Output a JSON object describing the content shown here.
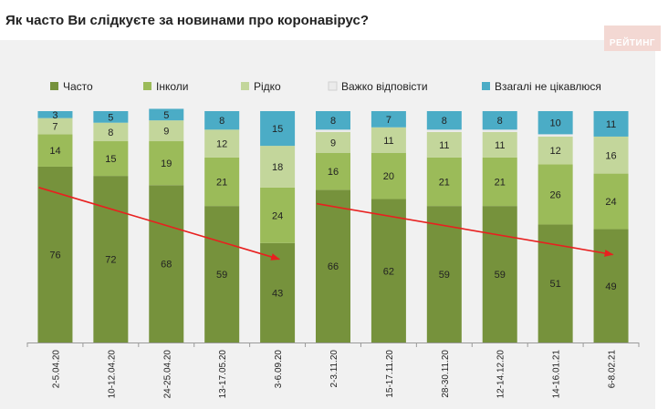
{
  "chart_data": {
    "type": "bar",
    "stacked": true,
    "title": "Як часто Ви слідкуєте за новинами про коронавірус?",
    "categories": [
      "2-5.04.20",
      "10-12.04.20",
      "24-25.04.20",
      "13-17.05.20",
      "3-6.09.20",
      "2-3.11.20",
      "15-17.11.20",
      "28-30.11.20",
      "12-14.12.20",
      "14-16.01.21",
      "6-8.02.21"
    ],
    "series": [
      {
        "name": "Часто",
        "color": "#76923c",
        "values": [
          76,
          72,
          68,
          59,
          43,
          66,
          62,
          59,
          59,
          51,
          49
        ]
      },
      {
        "name": "Інколи",
        "color": "#9bbb59",
        "values": [
          14,
          15,
          19,
          21,
          24,
          16,
          20,
          21,
          21,
          26,
          24
        ]
      },
      {
        "name": "Рідко",
        "color": "#c3d69b",
        "values": [
          7,
          8,
          9,
          12,
          18,
          9,
          11,
          11,
          11,
          12,
          16
        ]
      },
      {
        "name": "Важко відповісти",
        "color": "#ebebeb",
        "values": [
          0,
          0,
          0,
          0,
          0,
          1,
          0,
          1,
          1,
          1,
          0
        ]
      },
      {
        "name": "Взагалі не цікавлюся",
        "color": "#4bacc6",
        "values": [
          3,
          5,
          5,
          8,
          15,
          8,
          7,
          8,
          8,
          10,
          11
        ]
      }
    ],
    "ylim": [
      0,
      100
    ],
    "legend": "top",
    "trend_arrows": [
      {
        "from": [
          0,
          67
        ],
        "to": [
          4,
          36
        ]
      },
      {
        "from": [
          5,
          60
        ],
        "to": [
          10,
          38
        ]
      }
    ]
  },
  "brand": {
    "logo_text": "РЕЙТИНГ"
  }
}
